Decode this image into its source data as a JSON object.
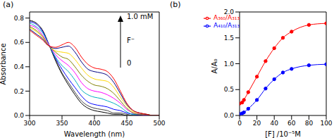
{
  "chart_data": [
    {
      "type": "line",
      "title": "(a)",
      "x_label": "Wavelength (nm)",
      "y_label": "Absorbance",
      "xlim": [
        300,
        500
      ],
      "xticks": [
        300,
        350,
        400,
        450,
        500
      ],
      "ylim": [
        0,
        0.85
      ],
      "yticks": [
        {
          "value": 0,
          "label": "0.0"
        },
        {
          "value": 0.2,
          "label": "0.2"
        },
        {
          "value": 0.4,
          "label": "0.4"
        },
        {
          "value": 0.6,
          "label": "0.6"
        },
        {
          "value": 0.8,
          "label": "0.8"
        }
      ],
      "annotations": [
        "1.0 mM",
        "F⁻",
        "0"
      ],
      "x": [
        300,
        310,
        320,
        330,
        340,
        350,
        360,
        370,
        380,
        390,
        400,
        410,
        420,
        430,
        440,
        450,
        460,
        470,
        480,
        490,
        500
      ],
      "series": [
        {
          "color": "#000000",
          "values": [
            0.78,
            0.76,
            0.7,
            0.58,
            0.45,
            0.34,
            0.25,
            0.17,
            0.1,
            0.06,
            0.04,
            0.03,
            0.02,
            0.01,
            0.01,
            0,
            0,
            0,
            0,
            0,
            0
          ]
        },
        {
          "color": "#404040",
          "values": [
            0.78,
            0.76,
            0.7,
            0.58,
            0.46,
            0.35,
            0.27,
            0.19,
            0.12,
            0.08,
            0.06,
            0.05,
            0.04,
            0.02,
            0.02,
            0.01,
            0,
            0,
            0,
            0,
            0
          ]
        },
        {
          "color": "#0000ff",
          "values": [
            0.77,
            0.75,
            0.69,
            0.58,
            0.47,
            0.38,
            0.3,
            0.23,
            0.16,
            0.11,
            0.09,
            0.08,
            0.07,
            0.05,
            0.04,
            0.02,
            0.01,
            0,
            0,
            0,
            0
          ]
        },
        {
          "color": "#00b0c0",
          "values": [
            0.76,
            0.73,
            0.68,
            0.58,
            0.48,
            0.41,
            0.36,
            0.29,
            0.21,
            0.17,
            0.15,
            0.14,
            0.12,
            0.1,
            0.07,
            0.03,
            0.01,
            0.01,
            0,
            0,
            0
          ]
        },
        {
          "color": "#ff00ff",
          "values": [
            0.74,
            0.72,
            0.66,
            0.58,
            0.5,
            0.45,
            0.41,
            0.35,
            0.27,
            0.22,
            0.2,
            0.19,
            0.17,
            0.14,
            0.1,
            0.05,
            0.02,
            0.01,
            0,
            0,
            0
          ]
        },
        {
          "color": "#808000",
          "values": [
            0.73,
            0.7,
            0.65,
            0.57,
            0.52,
            0.48,
            0.46,
            0.4,
            0.33,
            0.28,
            0.25,
            0.24,
            0.22,
            0.18,
            0.12,
            0.06,
            0.02,
            0.01,
            0.01,
            0,
            0
          ]
        },
        {
          "color": "#ffd700",
          "values": [
            0.72,
            0.69,
            0.64,
            0.57,
            0.53,
            0.52,
            0.51,
            0.46,
            0.39,
            0.33,
            0.3,
            0.29,
            0.28,
            0.23,
            0.15,
            0.08,
            0.03,
            0.02,
            0.01,
            0,
            0
          ]
        },
        {
          "color": "#000080",
          "values": [
            0.71,
            0.67,
            0.63,
            0.57,
            0.55,
            0.56,
            0.57,
            0.52,
            0.44,
            0.38,
            0.36,
            0.35,
            0.33,
            0.27,
            0.18,
            0.09,
            0.04,
            0.02,
            0.01,
            0,
            0
          ]
        },
        {
          "color": "#ff0000",
          "values": [
            0.7,
            0.66,
            0.62,
            0.57,
            0.56,
            0.58,
            0.6,
            0.56,
            0.48,
            0.42,
            0.39,
            0.38,
            0.36,
            0.3,
            0.2,
            0.1,
            0.04,
            0.02,
            0.01,
            0,
            0
          ]
        }
      ]
    },
    {
      "type": "line",
      "title": "(b)",
      "x_label": "[F] /10⁻⁵M",
      "y_label": "A/A₀",
      "xlim": [
        0,
        100
      ],
      "xticks": [
        0,
        20,
        40,
        60,
        80,
        100
      ],
      "ylim": [
        0,
        2
      ],
      "yticks": [
        {
          "value": 0,
          "label": "0.0"
        },
        {
          "value": 0.5,
          "label": "0.5"
        },
        {
          "value": 1,
          "label": "1.0"
        },
        {
          "value": 1.5,
          "label": "1.5"
        },
        {
          "value": 2,
          "label": "2.0"
        }
      ],
      "legend": "upper left",
      "marker": "circle",
      "series": [
        {
          "name": "A₃₆₀/A₃₁₃",
          "color": "#ff0000",
          "x": [
            0,
            3,
            5,
            10,
            20,
            30,
            40,
            50,
            60,
            80,
            100
          ],
          "values": [
            0.23,
            0.25,
            0.3,
            0.45,
            0.75,
            1.05,
            1.3,
            1.5,
            1.62,
            1.75,
            1.78
          ]
        },
        {
          "name": "A₄₁₀/A₃₁₃",
          "color": "#0000ff",
          "x": [
            0,
            3,
            5,
            10,
            20,
            30,
            40,
            50,
            60,
            80,
            100
          ],
          "values": [
            0.03,
            0.04,
            0.06,
            0.13,
            0.3,
            0.52,
            0.7,
            0.83,
            0.9,
            0.97,
            0.99
          ]
        }
      ]
    }
  ]
}
